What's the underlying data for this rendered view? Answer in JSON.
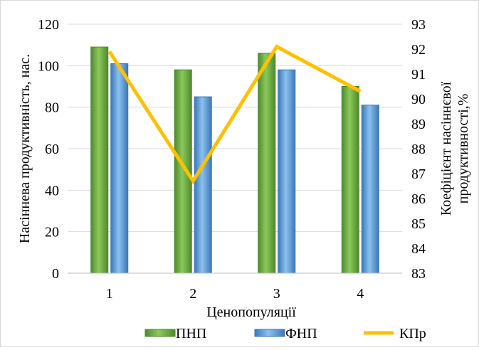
{
  "chart_data": {
    "type": "bar",
    "title": "",
    "categories": [
      "1",
      "2",
      "3",
      "4"
    ],
    "xlabel": "Ценопопуляції",
    "ylabel": "Насіннева продуктивність, нас.",
    "ylim": [
      0,
      120
    ],
    "yticks": [
      "0",
      "20",
      "40",
      "60",
      "80",
      "100",
      "120"
    ],
    "y2label_line1": "Коефіцієнт насіннєвої",
    "y2label_line2": "продуктивності,%",
    "y2lim": [
      83,
      93
    ],
    "y2ticks": [
      "83",
      "84",
      "85",
      "86",
      "87",
      "88",
      "89",
      "90",
      "91",
      "92",
      "93"
    ],
    "grid": true,
    "legend_position": "bottom",
    "series": [
      {
        "name": "ПНП",
        "kind": "bar",
        "axis": "left",
        "color": "#70ad47",
        "values": [
          109,
          98,
          106,
          90
        ]
      },
      {
        "name": "ФНП",
        "kind": "bar",
        "axis": "left",
        "color": "#5b9bd5",
        "values": [
          101,
          85,
          98,
          81
        ]
      },
      {
        "name": "КПр",
        "kind": "line",
        "axis": "right",
        "color": "#ffc000",
        "values": [
          91.9,
          86.7,
          92.1,
          90.3
        ]
      }
    ]
  }
}
